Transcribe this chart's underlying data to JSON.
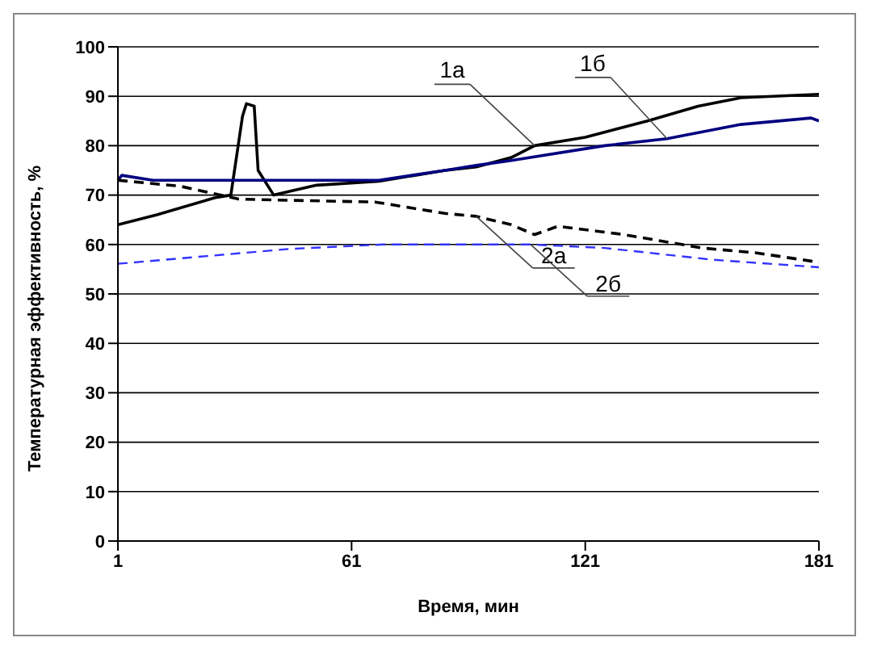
{
  "chart_data": {
    "type": "line",
    "xlabel": "Время, мин",
    "ylabel": "Температурная эффективность, %",
    "xlim": [
      1,
      181
    ],
    "xticks": [
      1,
      61,
      121,
      181
    ],
    "ylim": [
      0,
      100
    ],
    "yticks": [
      0,
      10,
      20,
      30,
      40,
      50,
      60,
      70,
      80,
      90,
      100
    ],
    "grid": "y",
    "marker": "none",
    "series": [
      {
        "name": "1а",
        "color": "#000000",
        "line_style": "solid",
        "x": [
          1,
          11,
          26,
          30,
          33,
          34,
          36,
          37,
          41,
          52,
          68,
          85,
          93,
          102,
          108,
          121,
          137,
          150,
          161,
          181
        ],
        "values": [
          64,
          66,
          69.5,
          70,
          86,
          88.5,
          88,
          75,
          70,
          72,
          72.8,
          75,
          75.7,
          77.6,
          80,
          81.7,
          85,
          88,
          89.7,
          90.4
        ]
      },
      {
        "name": "1б",
        "color": "#000080",
        "line_style": "solid",
        "x": [
          1,
          2,
          10,
          68,
          85,
          93,
          102,
          126,
          142,
          161,
          179,
          181
        ],
        "values": [
          73,
          74,
          73,
          73,
          75,
          76,
          77,
          80,
          81.4,
          84.3,
          85.6,
          85
        ]
      },
      {
        "name": "2а",
        "color": "#000000",
        "line_style": "dashed",
        "x": [
          1,
          17,
          32,
          42,
          67,
          85,
          93,
          102,
          108,
          114,
          131,
          151,
          165,
          181
        ],
        "values": [
          73,
          71.8,
          69.2,
          69,
          68.6,
          66.3,
          65.7,
          64,
          62,
          63.7,
          62,
          59.3,
          58.3,
          56.4
        ]
      },
      {
        "name": "2б",
        "color": "#3333ff",
        "line_style": "dashed",
        "x": [
          1,
          45,
          69,
          107,
          126,
          154,
          181
        ],
        "values": [
          56.1,
          59.1,
          60,
          60,
          59.3,
          56.9,
          55.4
        ]
      }
    ]
  }
}
